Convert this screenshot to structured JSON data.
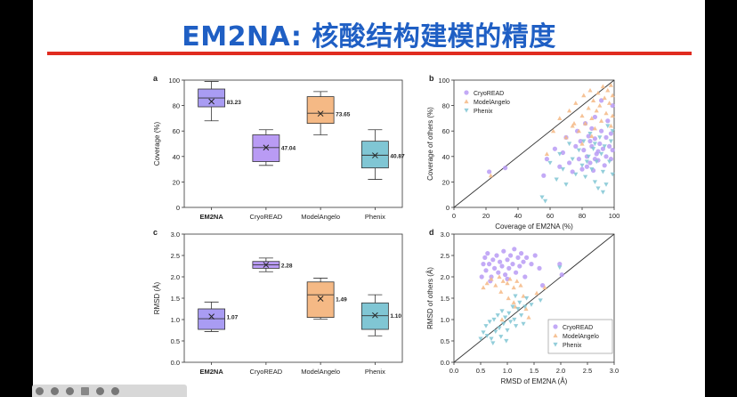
{
  "title": "EM2NA: 核酸结构建模的精度",
  "colors": {
    "em2na": "#a99cf3",
    "cryoread": "#b99bf4",
    "modelangelo": "#f5b985",
    "phenix": "#80c6d4",
    "title": "#1f5fc4",
    "rule": "#e02b20"
  },
  "toolbar_icons": [
    "back-icon",
    "forward-icon",
    "pen-icon",
    "grid-icon",
    "zoom-icon",
    "more-icon"
  ],
  "chart_data": [
    {
      "panel": "a",
      "type": "box",
      "categories": [
        "EM2NA",
        "CryoREAD",
        "ModelAngelo",
        "Phenix"
      ],
      "ylabel": "Coverage (%)",
      "ylim": [
        0,
        100
      ],
      "yticks": [
        0,
        20,
        40,
        60,
        80,
        100
      ],
      "boxes": [
        {
          "min": 68,
          "q1": 79,
          "median": 86,
          "q3": 93,
          "max": 99,
          "mean": 83.23,
          "mean_label": "83.23"
        },
        {
          "min": 33,
          "q1": 36,
          "median": 47,
          "q3": 57,
          "max": 61,
          "mean": 47.04,
          "mean_label": "47.04"
        },
        {
          "min": 57,
          "q1": 66,
          "median": 74,
          "q3": 87,
          "max": 91,
          "mean": 73.65,
          "mean_label": "73.65"
        },
        {
          "min": 22,
          "q1": 31,
          "median": 41,
          "q3": 52,
          "max": 61,
          "mean": 40.87,
          "mean_label": "40.87"
        }
      ]
    },
    {
      "panel": "b",
      "type": "scatter",
      "xlabel": "Coverage of EM2NA (%)",
      "ylabel": "Coverage of others (%)",
      "xlim": [
        0,
        100
      ],
      "ylim": [
        0,
        100
      ],
      "ticks": [
        0,
        20,
        40,
        60,
        80,
        100
      ],
      "legend_position": "top-left",
      "series": [
        {
          "name": "CryoREAD",
          "marker": "circle",
          "points": [
            [
              22,
              28
            ],
            [
              32,
              31
            ],
            [
              56,
              25
            ],
            [
              58,
              38
            ],
            [
              63,
              46
            ],
            [
              66,
              32
            ],
            [
              68,
              43
            ],
            [
              70,
              55
            ],
            [
              72,
              35
            ],
            [
              74,
              28
            ],
            [
              76,
              48
            ],
            [
              77,
              60
            ],
            [
              78,
              38
            ],
            [
              79,
              52
            ],
            [
              80,
              30
            ],
            [
              81,
              45
            ],
            [
              82,
              66
            ],
            [
              83,
              40
            ],
            [
              84,
              56
            ],
            [
              85,
              35
            ],
            [
              86,
              62
            ],
            [
              86,
              48
            ],
            [
              87,
              29
            ],
            [
              88,
              71
            ],
            [
              88,
              54
            ],
            [
              89,
              42
            ],
            [
              90,
              37
            ],
            [
              91,
              50
            ],
            [
              92,
              60
            ],
            [
              93,
              46
            ],
            [
              94,
              33
            ],
            [
              95,
              55
            ],
            [
              95,
              40
            ],
            [
              96,
              68
            ],
            [
              97,
              48
            ],
            [
              98,
              38
            ],
            [
              98,
              58
            ],
            [
              99,
              45
            ],
            [
              99,
              80
            ],
            [
              92,
              84
            ],
            [
              90,
              44
            ],
            [
              88,
              38
            ],
            [
              85,
              52
            ],
            [
              83,
              32
            ]
          ]
        },
        {
          "name": "ModelAngelo",
          "marker": "triangle-up",
          "points": [
            [
              23,
              25
            ],
            [
              58,
              42
            ],
            [
              62,
              60
            ],
            [
              66,
              70
            ],
            [
              70,
              55
            ],
            [
              72,
              76
            ],
            [
              74,
              64
            ],
            [
              76,
              82
            ],
            [
              78,
              60
            ],
            [
              80,
              72
            ],
            [
              81,
              88
            ],
            [
              82,
              66
            ],
            [
              84,
              78
            ],
            [
              85,
              92
            ],
            [
              86,
              70
            ],
            [
              87,
              84
            ],
            [
              88,
              62
            ],
            [
              89,
              76
            ],
            [
              90,
              90
            ],
            [
              91,
              80
            ],
            [
              92,
              68
            ],
            [
              93,
              95
            ],
            [
              94,
              86
            ],
            [
              95,
              74
            ],
            [
              96,
              92
            ],
            [
              97,
              82
            ],
            [
              98,
              96
            ],
            [
              99,
              88
            ],
            [
              99,
              72
            ],
            [
              98,
              64
            ],
            [
              86,
              56
            ],
            [
              80,
              50
            ],
            [
              75,
              66
            ]
          ]
        },
        {
          "name": "Phenix",
          "marker": "triangle-down",
          "points": [
            [
              55,
              8
            ],
            [
              57,
              5
            ],
            [
              60,
              35
            ],
            [
              64,
              22
            ],
            [
              66,
              42
            ],
            [
              68,
              30
            ],
            [
              70,
              18
            ],
            [
              72,
              50
            ],
            [
              74,
              38
            ],
            [
              76,
              26
            ],
            [
              78,
              45
            ],
            [
              80,
              33
            ],
            [
              81,
              52
            ],
            [
              82,
              24
            ],
            [
              84,
              40
            ],
            [
              85,
              58
            ],
            [
              86,
              30
            ],
            [
              87,
              46
            ],
            [
              88,
              20
            ],
            [
              89,
              36
            ],
            [
              90,
              15
            ],
            [
              91,
              55
            ],
            [
              92,
              42
            ],
            [
              93,
              28
            ],
            [
              94,
              48
            ],
            [
              95,
              18
            ],
            [
              96,
              64
            ],
            [
              97,
              36
            ],
            [
              98,
              52
            ],
            [
              99,
              26
            ],
            [
              99,
              60
            ],
            [
              93,
              12
            ],
            [
              88,
              50
            ],
            [
              83,
              36
            ]
          ]
        }
      ]
    },
    {
      "panel": "c",
      "type": "box",
      "categories": [
        "EM2NA",
        "CryoREAD",
        "ModelAngelo",
        "Phenix"
      ],
      "ylabel": "RMSD (Å)",
      "ylim": [
        0,
        3.0
      ],
      "yticks": [
        0.0,
        0.5,
        1.0,
        1.5,
        2.0,
        2.5,
        3.0
      ],
      "boxes": [
        {
          "min": 0.72,
          "q1": 0.77,
          "median": 1.02,
          "q3": 1.25,
          "max": 1.41,
          "mean": 1.07,
          "mean_label": "1.07"
        },
        {
          "min": 2.12,
          "q1": 2.2,
          "median": 2.28,
          "q3": 2.36,
          "max": 2.44,
          "mean": 2.28,
          "mean_label": "2.28"
        },
        {
          "min": 1.01,
          "q1": 1.05,
          "median": 1.58,
          "q3": 1.88,
          "max": 1.97,
          "mean": 1.49,
          "mean_label": "1.49"
        },
        {
          "min": 0.62,
          "q1": 0.77,
          "median": 1.09,
          "q3": 1.39,
          "max": 1.58,
          "mean": 1.1,
          "mean_label": "1.10"
        }
      ]
    },
    {
      "panel": "d",
      "type": "scatter",
      "xlabel": "RMSD of EM2NA (Å)",
      "ylabel": "RMSD of others (Å)",
      "xlim": [
        0,
        3.0
      ],
      "ylim": [
        0,
        3.0
      ],
      "ticks": [
        0.0,
        0.5,
        1.0,
        1.5,
        2.0,
        2.5,
        3.0
      ],
      "legend_position": "bottom-right",
      "series": [
        {
          "name": "CryoREAD",
          "marker": "circle",
          "points": [
            [
              0.52,
              2.0
            ],
            [
              0.55,
              2.3
            ],
            [
              0.58,
              2.45
            ],
            [
              0.6,
              2.15
            ],
            [
              0.63,
              2.55
            ],
            [
              0.66,
              2.3
            ],
            [
              0.7,
              2.0
            ],
            [
              0.73,
              2.4
            ],
            [
              0.76,
              2.2
            ],
            [
              0.8,
              2.5
            ],
            [
              0.83,
              2.1
            ],
            [
              0.86,
              2.35
            ],
            [
              0.9,
              2.25
            ],
            [
              0.93,
              2.6
            ],
            [
              0.96,
              2.05
            ],
            [
              1.0,
              2.4
            ],
            [
              1.03,
              2.2
            ],
            [
              1.06,
              2.5
            ],
            [
              1.1,
              2.3
            ],
            [
              1.13,
              2.65
            ],
            [
              1.16,
              2.1
            ],
            [
              1.2,
              2.45
            ],
            [
              1.23,
              2.25
            ],
            [
              1.26,
              2.55
            ],
            [
              1.3,
              2.35
            ],
            [
              1.33,
              2.0
            ],
            [
              1.36,
              2.45
            ],
            [
              1.45,
              2.3
            ],
            [
              1.52,
              2.5
            ],
            [
              1.6,
              2.2
            ],
            [
              1.66,
              1.8
            ],
            [
              1.98,
              2.3
            ],
            [
              2.02,
              2.05
            ],
            [
              0.68,
              1.9
            ],
            [
              1.0,
              1.95
            ]
          ]
        },
        {
          "name": "ModelAngelo",
          "marker": "triangle-up",
          "points": [
            [
              0.55,
              1.75
            ],
            [
              0.62,
              1.85
            ],
            [
              0.7,
              1.95
            ],
            [
              0.78,
              1.8
            ],
            [
              0.85,
              2.0
            ],
            [
              0.92,
              1.9
            ],
            [
              1.0,
              1.85
            ],
            [
              1.05,
              1.95
            ],
            [
              1.12,
              1.75
            ],
            [
              1.18,
              1.9
            ],
            [
              1.25,
              1.8
            ],
            [
              1.3,
              1.55
            ],
            [
              1.35,
              1.25
            ],
            [
              1.4,
              1.05
            ],
            [
              1.12,
              1.4
            ],
            [
              1.02,
              1.5
            ],
            [
              0.88,
              1.65
            ],
            [
              1.55,
              1.62
            ],
            [
              1.7,
              1.75
            ],
            [
              0.9,
              1.0
            ],
            [
              1.15,
              1.3
            ]
          ]
        },
        {
          "name": "Phenix",
          "marker": "triangle-down",
          "points": [
            [
              0.5,
              0.55
            ],
            [
              0.55,
              0.7
            ],
            [
              0.6,
              0.85
            ],
            [
              0.62,
              0.62
            ],
            [
              0.67,
              0.95
            ],
            [
              0.7,
              0.55
            ],
            [
              0.75,
              1.0
            ],
            [
              0.78,
              0.72
            ],
            [
              0.82,
              1.1
            ],
            [
              0.85,
              0.8
            ],
            [
              0.9,
              1.2
            ],
            [
              0.93,
              0.9
            ],
            [
              0.96,
              1.05
            ],
            [
              1.0,
              0.75
            ],
            [
              1.03,
              1.15
            ],
            [
              1.06,
              0.95
            ],
            [
              1.1,
              1.3
            ],
            [
              1.13,
              1.0
            ],
            [
              1.16,
              0.85
            ],
            [
              1.2,
              1.25
            ],
            [
              1.23,
              1.4
            ],
            [
              1.26,
              1.1
            ],
            [
              1.3,
              0.9
            ],
            [
              1.33,
              1.3
            ],
            [
              1.36,
              1.5
            ],
            [
              1.15,
              1.55
            ],
            [
              0.73,
              0.45
            ],
            [
              0.88,
              0.6
            ],
            [
              0.98,
              0.5
            ],
            [
              1.45,
              1.35
            ],
            [
              1.62,
              1.45
            ],
            [
              1.98,
              2.22
            ]
          ]
        }
      ]
    }
  ]
}
